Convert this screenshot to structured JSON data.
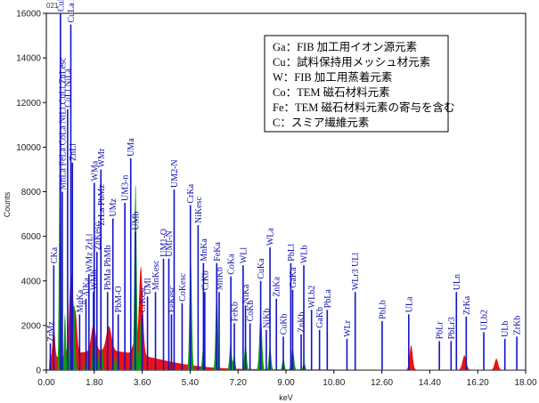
{
  "chart_data": {
    "type": "area",
    "header": "021",
    "xlabel": "keV",
    "ylabel": "Counts",
    "xlim": [
      0,
      18
    ],
    "ylim": [
      0,
      16000
    ],
    "x_ticks": [
      "0.00",
      "1.80",
      "3.60",
      "5.40",
      "7.20",
      "9.00",
      "10.80",
      "12.60",
      "14.40",
      "16.20",
      "18.00"
    ],
    "y_ticks": [
      "0",
      "2000",
      "4000",
      "6000",
      "8000",
      "10000",
      "12000",
      "14000",
      "16000"
    ],
    "colors": {
      "spectrum_red": "#ee1111",
      "spectrum_green": "#119911",
      "markers": "#1414c8",
      "axis": "#000000"
    },
    "legend": [
      "Ga：FIB 加工用イオン源元素",
      "Cu：試料保持用メッシュ材元素",
      "W：FIB 加工用蒸着元素",
      "Co：TEM 磁石材料元素",
      "Fe：TEM 磁石材料元素の寄与を含む",
      "C：スミア繊維元素"
    ],
    "series": [
      {
        "layer": "red",
        "peaks": [
          {
            "x": 0.28,
            "y": 1500,
            "w": 0.06
          },
          {
            "x": 0.93,
            "y": 3600,
            "w": 0.1
          },
          {
            "x": 1.1,
            "y": 1700,
            "w": 0.08
          },
          {
            "x": 1.77,
            "y": 1200,
            "w": 0.12
          },
          {
            "x": 2.35,
            "y": 1100,
            "w": 0.14
          },
          {
            "x": 3.3,
            "y": 500,
            "w": 0.1
          },
          {
            "x": 3.55,
            "y": 4000,
            "w": 0.1
          },
          {
            "x": 13.7,
            "y": 1100,
            "w": 0.08
          },
          {
            "x": 15.7,
            "y": 650,
            "w": 0.1
          },
          {
            "x": 16.9,
            "y": 500,
            "w": 0.09
          }
        ]
      },
      {
        "layer": "green",
        "peaks": [
          {
            "x": 0.52,
            "y": 13000,
            "w": 0.05
          },
          {
            "x": 0.7,
            "y": 2600,
            "w": 0.05
          },
          {
            "x": 0.86,
            "y": 1200,
            "w": 0.05
          },
          {
            "x": 1.05,
            "y": 3000,
            "w": 0.05
          },
          {
            "x": 1.49,
            "y": 1000,
            "w": 0.04
          },
          {
            "x": 1.78,
            "y": 2500,
            "w": 0.05
          },
          {
            "x": 1.93,
            "y": 1000,
            "w": 0.04
          },
          {
            "x": 2.1,
            "y": 1000,
            "w": 0.04
          },
          {
            "x": 2.6,
            "y": 700,
            "w": 0.05
          },
          {
            "x": 3.35,
            "y": 8500,
            "w": 0.06
          },
          {
            "x": 3.53,
            "y": 2300,
            "w": 0.05
          },
          {
            "x": 5.42,
            "y": 5300,
            "w": 0.06
          },
          {
            "x": 5.9,
            "y": 1100,
            "w": 0.06
          },
          {
            "x": 6.4,
            "y": 3800,
            "w": 0.06
          },
          {
            "x": 6.92,
            "y": 1200,
            "w": 0.06
          },
          {
            "x": 7.06,
            "y": 700,
            "w": 0.05
          },
          {
            "x": 7.48,
            "y": 1200,
            "w": 0.06
          },
          {
            "x": 8.05,
            "y": 2600,
            "w": 0.07
          },
          {
            "x": 8.4,
            "y": 1100,
            "w": 0.06
          },
          {
            "x": 8.9,
            "y": 500,
            "w": 0.06
          },
          {
            "x": 9.25,
            "y": 1000,
            "w": 0.07
          },
          {
            "x": 9.68,
            "y": 350,
            "w": 0.06
          }
        ]
      }
    ],
    "element_markers": [
      {
        "label": "ZrMz",
        "x": 0.15,
        "y": 1200
      },
      {
        "label": "CKa",
        "x": 0.28,
        "y": 4700
      },
      {
        "label": "MnLa FeLa CoLa NiLl CuLl ZnLesc",
        "x": 0.6,
        "y": 8000
      },
      {
        "label": "CuLl OKa",
        "x": 0.53,
        "y": 16000
      },
      {
        "label": "CuLa ZnLa ZnLb",
        "x": 0.92,
        "y": 15500
      },
      {
        "label": "CuLl NiLa",
        "x": 0.8,
        "y": 11700
      },
      {
        "label": "ZnLl",
        "x": 0.98,
        "y": 9300
      },
      {
        "label": "MgKa",
        "x": 1.25,
        "y": 2500
      },
      {
        "label": "AlKa",
        "x": 1.49,
        "y": 3200
      },
      {
        "label": "WMz ZrLl",
        "x": 1.6,
        "y": 4300
      },
      {
        "label": "WMb",
        "x": 1.77,
        "y": 3500
      },
      {
        "label": "ZnKesc",
        "x": 1.9,
        "y": 5300
      },
      {
        "label": "WMa",
        "x": 1.8,
        "y": 8400
      },
      {
        "label": "WMr",
        "x": 2.05,
        "y": 9000
      },
      {
        "label": "ZrLa PbMz",
        "x": 2.05,
        "y": 6400
      },
      {
        "label": "PbMa PbMb",
        "x": 2.3,
        "y": 3500
      },
      {
        "label": "UMz",
        "x": 2.5,
        "y": 6800
      },
      {
        "label": "PbM-O",
        "x": 2.7,
        "y": 2500
      },
      {
        "label": "UM3-n",
        "x": 2.95,
        "y": 7500
      },
      {
        "label": "UMa",
        "x": 3.17,
        "y": 9500
      },
      {
        "label": "UMb",
        "x": 3.34,
        "y": 6200
      },
      {
        "label": "CrKesc",
        "x": 3.6,
        "y": 2500
      },
      {
        "label": "UMl",
        "x": 3.8,
        "y": 3300
      },
      {
        "label": "MnKesc",
        "x": 4.1,
        "y": 3500
      },
      {
        "label": "UM1-O",
        "x": 4.4,
        "y": 5000
      },
      {
        "label": "UMl-N",
        "x": 4.6,
        "y": 5000
      },
      {
        "label": "UM2-N",
        "x": 4.8,
        "y": 8100
      },
      {
        "label": "FeKesc",
        "x": 4.7,
        "y": 2500
      },
      {
        "label": "CoKesc",
        "x": 5.1,
        "y": 3000
      },
      {
        "label": "CrKa",
        "x": 5.41,
        "y": 7400
      },
      {
        "label": "NiKesc",
        "x": 5.7,
        "y": 6500
      },
      {
        "label": "CrKb",
        "x": 5.95,
        "y": 3500
      },
      {
        "label": "MnKa",
        "x": 5.9,
        "y": 4800
      },
      {
        "label": "FeKa",
        "x": 6.4,
        "y": 4800
      },
      {
        "label": "MnKb",
        "x": 6.49,
        "y": 3500
      },
      {
        "label": "CoKa",
        "x": 6.93,
        "y": 4200
      },
      {
        "label": "FeKb",
        "x": 7.06,
        "y": 2100
      },
      {
        "label": "CoKb",
        "x": 7.65,
        "y": 2100
      },
      {
        "label": "NiKa",
        "x": 7.48,
        "y": 2900
      },
      {
        "label": "WLl",
        "x": 7.39,
        "y": 4700
      },
      {
        "label": "WLa",
        "x": 8.4,
        "y": 5500
      },
      {
        "label": "CuKa",
        "x": 8.05,
        "y": 4000
      },
      {
        "label": "NiKb",
        "x": 8.26,
        "y": 1800
      },
      {
        "label": "CuKb",
        "x": 8.9,
        "y": 1500
      },
      {
        "label": "ZnKa",
        "x": 8.64,
        "y": 3200
      },
      {
        "label": "GaKa",
        "x": 9.25,
        "y": 3600
      },
      {
        "label": "PbLl",
        "x": 9.18,
        "y": 4800
      },
      {
        "label": "WLb",
        "x": 9.67,
        "y": 4700
      },
      {
        "label": "ZnKb",
        "x": 9.57,
        "y": 1600
      },
      {
        "label": "WLb2",
        "x": 9.96,
        "y": 2700
      },
      {
        "label": "GaKb",
        "x": 10.26,
        "y": 1800
      },
      {
        "label": "PbLa",
        "x": 10.55,
        "y": 2700
      },
      {
        "label": "WLr3 ULl",
        "x": 11.6,
        "y": 3500
      },
      {
        "label": "WLr",
        "x": 11.29,
        "y": 1400
      },
      {
        "label": "PbLb",
        "x": 12.61,
        "y": 2200
      },
      {
        "label": "ULa",
        "x": 13.61,
        "y": 2500
      },
      {
        "label": "PbLr",
        "x": 14.76,
        "y": 1300
      },
      {
        "label": "PbLr3",
        "x": 15.2,
        "y": 1300
      },
      {
        "label": "ULn",
        "x": 15.4,
        "y": 3500
      },
      {
        "label": "ZrKa",
        "x": 15.77,
        "y": 2400
      },
      {
        "label": "ULb2",
        "x": 16.43,
        "y": 1700
      },
      {
        "label": "ULb",
        "x": 17.22,
        "y": 1400
      },
      {
        "label": "ZrKb",
        "x": 17.67,
        "y": 1500
      }
    ]
  }
}
